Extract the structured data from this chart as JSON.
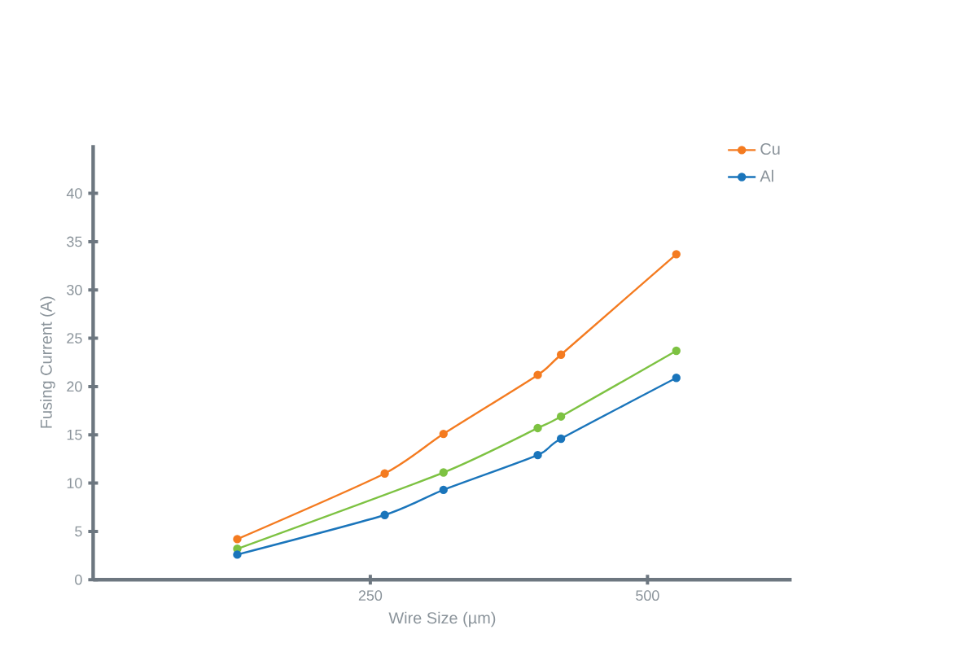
{
  "chart_data": {
    "type": "line",
    "xlabel": "Wire Size (µm)",
    "ylabel": "Fusing Current (A)",
    "xlim": [
      0,
      630
    ],
    "ylim": [
      0,
      45
    ],
    "xticks": [
      250,
      500
    ],
    "yticks": [
      0,
      5,
      10,
      15,
      20,
      25,
      30,
      35,
      40
    ],
    "marker": "circle",
    "legend": "top right",
    "grid": false,
    "series": [
      {
        "color": "#7dc242",
        "x": [
          130,
          316,
          401,
          422,
          526
        ],
        "values": [
          3.2,
          11.1,
          15.7,
          16.9,
          23.7
        ]
      },
      {
        "name": "Cu",
        "color": "#f47b20",
        "x": [
          130,
          263,
          316,
          401,
          422,
          526
        ],
        "values": [
          4.2,
          11.0,
          15.1,
          21.2,
          23.3,
          33.7
        ]
      },
      {
        "name": "Al",
        "color": "#1a75bb",
        "x": [
          130,
          263,
          316,
          401,
          422,
          526
        ],
        "values": [
          2.6,
          6.7,
          9.3,
          12.9,
          14.6,
          20.9
        ]
      }
    ]
  }
}
